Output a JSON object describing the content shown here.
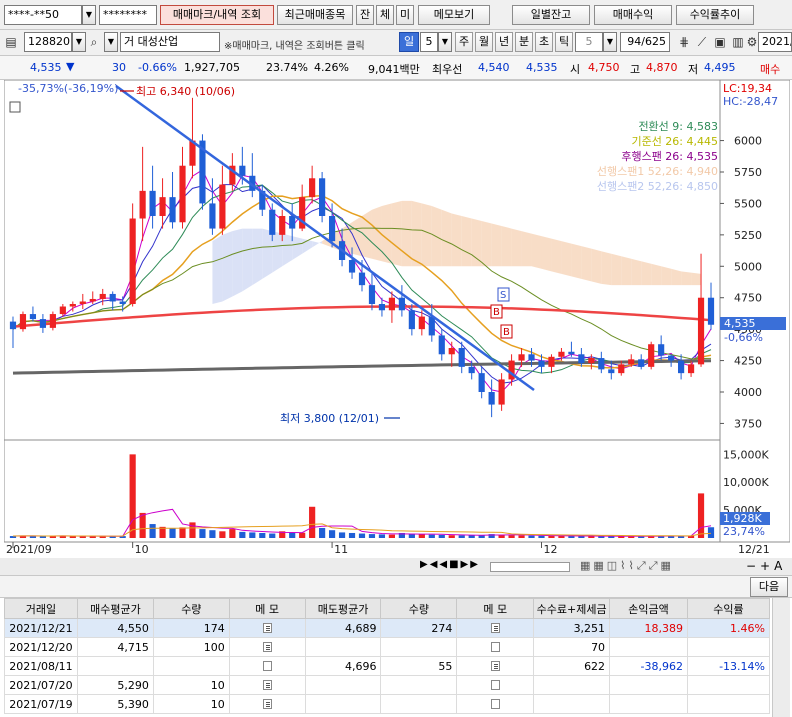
{
  "toolbar1": {
    "account": "****-**50",
    "password": "********",
    "buttons": [
      "매매마크/내역 조회",
      "최근매매종목",
      "잔",
      "체",
      "미",
      "메모보기"
    ],
    "right_buttons": [
      "일별잔고",
      "매매수익",
      "수익률추이"
    ]
  },
  "toolbar2": {
    "code": "128820",
    "name": "거 대성산업",
    "notice": "※매매마크, 내역은 조회버튼 클릭",
    "period_selected": "일",
    "period_num": "5",
    "periods": [
      "주",
      "월",
      "년",
      "분",
      "초",
      "틱"
    ],
    "tick_num": "5",
    "page": "94/625",
    "date": "2021/1"
  },
  "quote": {
    "price": "4,535",
    "change_icon": "down-triangle-icon",
    "change": "30",
    "change_pct": "-0.66%",
    "volume": "1,927,705",
    "vol_ratio": "23.74%",
    "rate": "4.26%",
    "amount": "9,041백만",
    "buy_label": "최우선",
    "best_ask": "4,540",
    "best_bid": "4,535",
    "open_label": "시",
    "open": "4,750",
    "high_label": "고",
    "high": "4,870",
    "low_label": "저",
    "low": "4,495",
    "tail_label": "매수"
  },
  "chart_data": {
    "type": "candlestick",
    "x_labels": [
      {
        "label": "2021/09",
        "i": 0
      },
      {
        "label": "10",
        "i": 12
      },
      {
        "label": "11",
        "i": 32
      },
      {
        "label": "12",
        "i": 53
      },
      {
        "label": "12/21",
        "i": 69
      }
    ],
    "y_ticks": [
      6000,
      5750,
      5500,
      5250,
      5000,
      4750,
      4500,
      4250,
      4000,
      3750
    ],
    "ylim": [
      3650,
      6450
    ],
    "vol_ticks": [
      "15,000K",
      "10,000K",
      "5,000K"
    ],
    "vol_ylim": [
      0,
      16500
    ],
    "top_left_label": "-35,73%(-36,19%)",
    "top_right_lc": "LC:19,34",
    "top_right_hc": "HC:-28,47",
    "high_annot": "최고 6,340 (10/06)",
    "low_annot": "최저 3,800 (12/01)",
    "price_tag": "4,535",
    "pct_tag": "-0,66%",
    "vol_tag": "1,928K",
    "vol_pct_tag": "23,74%",
    "legend": [
      {
        "text": "전환선 9: 4,583",
        "color": "#2e8b57"
      },
      {
        "text": "기준선 26: 4,445",
        "color": "#b8b800"
      },
      {
        "text": "후행스팬 26: 4,535",
        "color": "#8b008b"
      },
      {
        "text": "선행스팬1 52,26: 4,940",
        "color": "#f2c9a8"
      },
      {
        "text": "선행스팬2 52,26: 4,850",
        "color": "#b8c6ee"
      }
    ],
    "candles": [
      [
        4560,
        4600,
        4350,
        4500
      ],
      [
        4500,
        4640,
        4480,
        4620
      ],
      [
        4620,
        4680,
        4560,
        4580
      ],
      [
        4580,
        4620,
        4470,
        4510
      ],
      [
        4510,
        4640,
        4490,
        4620
      ],
      [
        4620,
        4700,
        4600,
        4680
      ],
      [
        4680,
        4720,
        4640,
        4700
      ],
      [
        4700,
        4780,
        4660,
        4720
      ],
      [
        4720,
        4800,
        4700,
        4740
      ],
      [
        4740,
        4820,
        4690,
        4780
      ],
      [
        4780,
        4800,
        4650,
        4720
      ],
      [
        4720,
        4760,
        4640,
        4700
      ],
      [
        4700,
        5500,
        4680,
        5380
      ],
      [
        5380,
        5950,
        5200,
        5600
      ],
      [
        5600,
        5800,
        5300,
        5400
      ],
      [
        5400,
        5700,
        5300,
        5550
      ],
      [
        5550,
        5750,
        5300,
        5350
      ],
      [
        5350,
        5950,
        5300,
        5800
      ],
      [
        5800,
        6340,
        5700,
        6000
      ],
      [
        6000,
        6050,
        5450,
        5500
      ],
      [
        5500,
        5700,
        5250,
        5300
      ],
      [
        5300,
        5800,
        5250,
        5650
      ],
      [
        5650,
        5900,
        5600,
        5800
      ],
      [
        5800,
        5950,
        5650,
        5720
      ],
      [
        5720,
        5900,
        5550,
        5600
      ],
      [
        5600,
        5650,
        5400,
        5450
      ],
      [
        5450,
        5500,
        5200,
        5250
      ],
      [
        5250,
        5450,
        5200,
        5400
      ],
      [
        5400,
        5500,
        5200,
        5300
      ],
      [
        5300,
        5650,
        5280,
        5550
      ],
      [
        5550,
        5800,
        5500,
        5700
      ],
      [
        5700,
        5750,
        5350,
        5400
      ],
      [
        5400,
        5500,
        5150,
        5200
      ],
      [
        5200,
        5300,
        5000,
        5050
      ],
      [
        5050,
        5150,
        4900,
        4950
      ],
      [
        4950,
        5050,
        4800,
        4850
      ],
      [
        4850,
        4950,
        4650,
        4700
      ],
      [
        4700,
        4750,
        4600,
        4650
      ],
      [
        4650,
        4800,
        4550,
        4750
      ],
      [
        4750,
        4850,
        4600,
        4650
      ],
      [
        4650,
        4700,
        4450,
        4500
      ],
      [
        4500,
        4650,
        4450,
        4600
      ],
      [
        4600,
        4700,
        4400,
        4450
      ],
      [
        4450,
        4500,
        4250,
        4300
      ],
      [
        4300,
        4400,
        4200,
        4350
      ],
      [
        4350,
        4400,
        4150,
        4200
      ],
      [
        4200,
        4250,
        4100,
        4150
      ],
      [
        4150,
        4200,
        3950,
        4000
      ],
      [
        4000,
        4100,
        3800,
        3900
      ],
      [
        3900,
        4150,
        3850,
        4100
      ],
      [
        4100,
        4300,
        4050,
        4250
      ],
      [
        4250,
        4350,
        4200,
        4300
      ],
      [
        4300,
        4350,
        4200,
        4250
      ],
      [
        4250,
        4300,
        4150,
        4200
      ],
      [
        4200,
        4300,
        4150,
        4280
      ],
      [
        4280,
        4350,
        4250,
        4320
      ],
      [
        4320,
        4400,
        4280,
        4300
      ],
      [
        4300,
        4350,
        4200,
        4230
      ],
      [
        4230,
        4300,
        4180,
        4270
      ],
      [
        4270,
        4320,
        4150,
        4180
      ],
      [
        4180,
        4250,
        4100,
        4150
      ],
      [
        4150,
        4250,
        4130,
        4220
      ],
      [
        4220,
        4300,
        4200,
        4260
      ],
      [
        4260,
        4300,
        4180,
        4200
      ],
      [
        4200,
        4400,
        4180,
        4380
      ],
      [
        4380,
        4450,
        4250,
        4290
      ],
      [
        4290,
        4300,
        4200,
        4250
      ],
      [
        4250,
        4300,
        4100,
        4150
      ],
      [
        4150,
        4250,
        4120,
        4220
      ],
      [
        4220,
        5100,
        4200,
        4750
      ],
      [
        4750,
        4870,
        4495,
        4535
      ]
    ],
    "volumes": [
      350,
      420,
      380,
      300,
      360,
      410,
      330,
      300,
      280,
      320,
      350,
      340,
      15000,
      4500,
      2500,
      2000,
      1700,
      1900,
      2800,
      1600,
      1400,
      1200,
      1600,
      1100,
      1000,
      900,
      800,
      1200,
      1000,
      950,
      5600,
      1800,
      1400,
      1000,
      900,
      800,
      700,
      650,
      600,
      900,
      700,
      650,
      600,
      550,
      500,
      480,
      460,
      500,
      700,
      600,
      500,
      450,
      420,
      400,
      380,
      360,
      350,
      340,
      330,
      320,
      310,
      300,
      290,
      300,
      420,
      380,
      350,
      340,
      400,
      8000,
      1928
    ],
    "ichimoku_lead1": [
      4700,
      4720,
      4760,
      4800,
      4850,
      4900,
      4950,
      5000,
      5050,
      5100,
      5150,
      5200,
      5250,
      5300,
      5350,
      5400,
      5450,
      5480,
      5500,
      5520,
      5520,
      5500,
      5480,
      5450,
      5420,
      5400,
      5380,
      5360,
      5340,
      5320,
      5300,
      5280,
      5260,
      5240,
      5220,
      5200,
      5180,
      5160,
      5140,
      5120,
      5100,
      5080,
      5060,
      5040,
      5020,
      5000,
      4980,
      4960,
      4950,
      4940
    ],
    "ichimoku_lead2": [
      5200,
      5250,
      5280,
      5300,
      5300,
      5300,
      5280,
      5260,
      5240,
      5220,
      5200,
      5180,
      5150,
      5120,
      5100,
      5080,
      5060,
      5040,
      5020,
      5000,
      5000,
      5000,
      5000,
      5000,
      5000,
      5000,
      5000,
      5000,
      5000,
      5000,
      5000,
      5000,
      5000,
      4980,
      4960,
      4940,
      4920,
      4900,
      4880,
      4860,
      4850,
      4850,
      4850,
      4850,
      4850,
      4850,
      4850,
      4850,
      4850,
      4850
    ]
  },
  "bottom_nav": {
    "next_button": "다음"
  },
  "table": {
    "headers": [
      "거래일",
      "매수평균가",
      "수량",
      "메 모",
      "매도평균가",
      "수량",
      "메 모",
      "수수료+제세금",
      "손익금액",
      "수익률"
    ],
    "rows": [
      {
        "date": "2021/12/21",
        "buy": "4,550",
        "bqty": "174",
        "bmemo": true,
        "sell": "4,689",
        "sqty": "274",
        "smemo": true,
        "fee": "3,251",
        "pl": "18,389",
        "ret": "1.46%",
        "pos": true,
        "hl": true
      },
      {
        "date": "2021/12/20",
        "buy": "4,715",
        "bqty": "100",
        "bmemo": true,
        "sell": "",
        "sqty": "",
        "smemo": false,
        "fee": "70",
        "pl": "",
        "ret": "",
        "pos": true,
        "hl": false
      },
      {
        "date": "2021/08/11",
        "buy": "",
        "bqty": "",
        "bmemo": false,
        "sell": "4,696",
        "sqty": "55",
        "smemo": true,
        "fee": "622",
        "pl": "-38,962",
        "ret": "-13.14%",
        "pos": false,
        "hl": false
      },
      {
        "date": "2021/07/20",
        "buy": "5,290",
        "bqty": "10",
        "bmemo": true,
        "sell": "",
        "sqty": "",
        "smemo": false,
        "fee": "",
        "pl": "",
        "ret": "",
        "pos": true,
        "hl": false
      },
      {
        "date": "2021/07/19",
        "buy": "5,390",
        "bqty": "10",
        "bmemo": true,
        "sell": "",
        "sqty": "",
        "smemo": false,
        "fee": "",
        "pl": "",
        "ret": "",
        "pos": true,
        "hl": false
      }
    ]
  }
}
